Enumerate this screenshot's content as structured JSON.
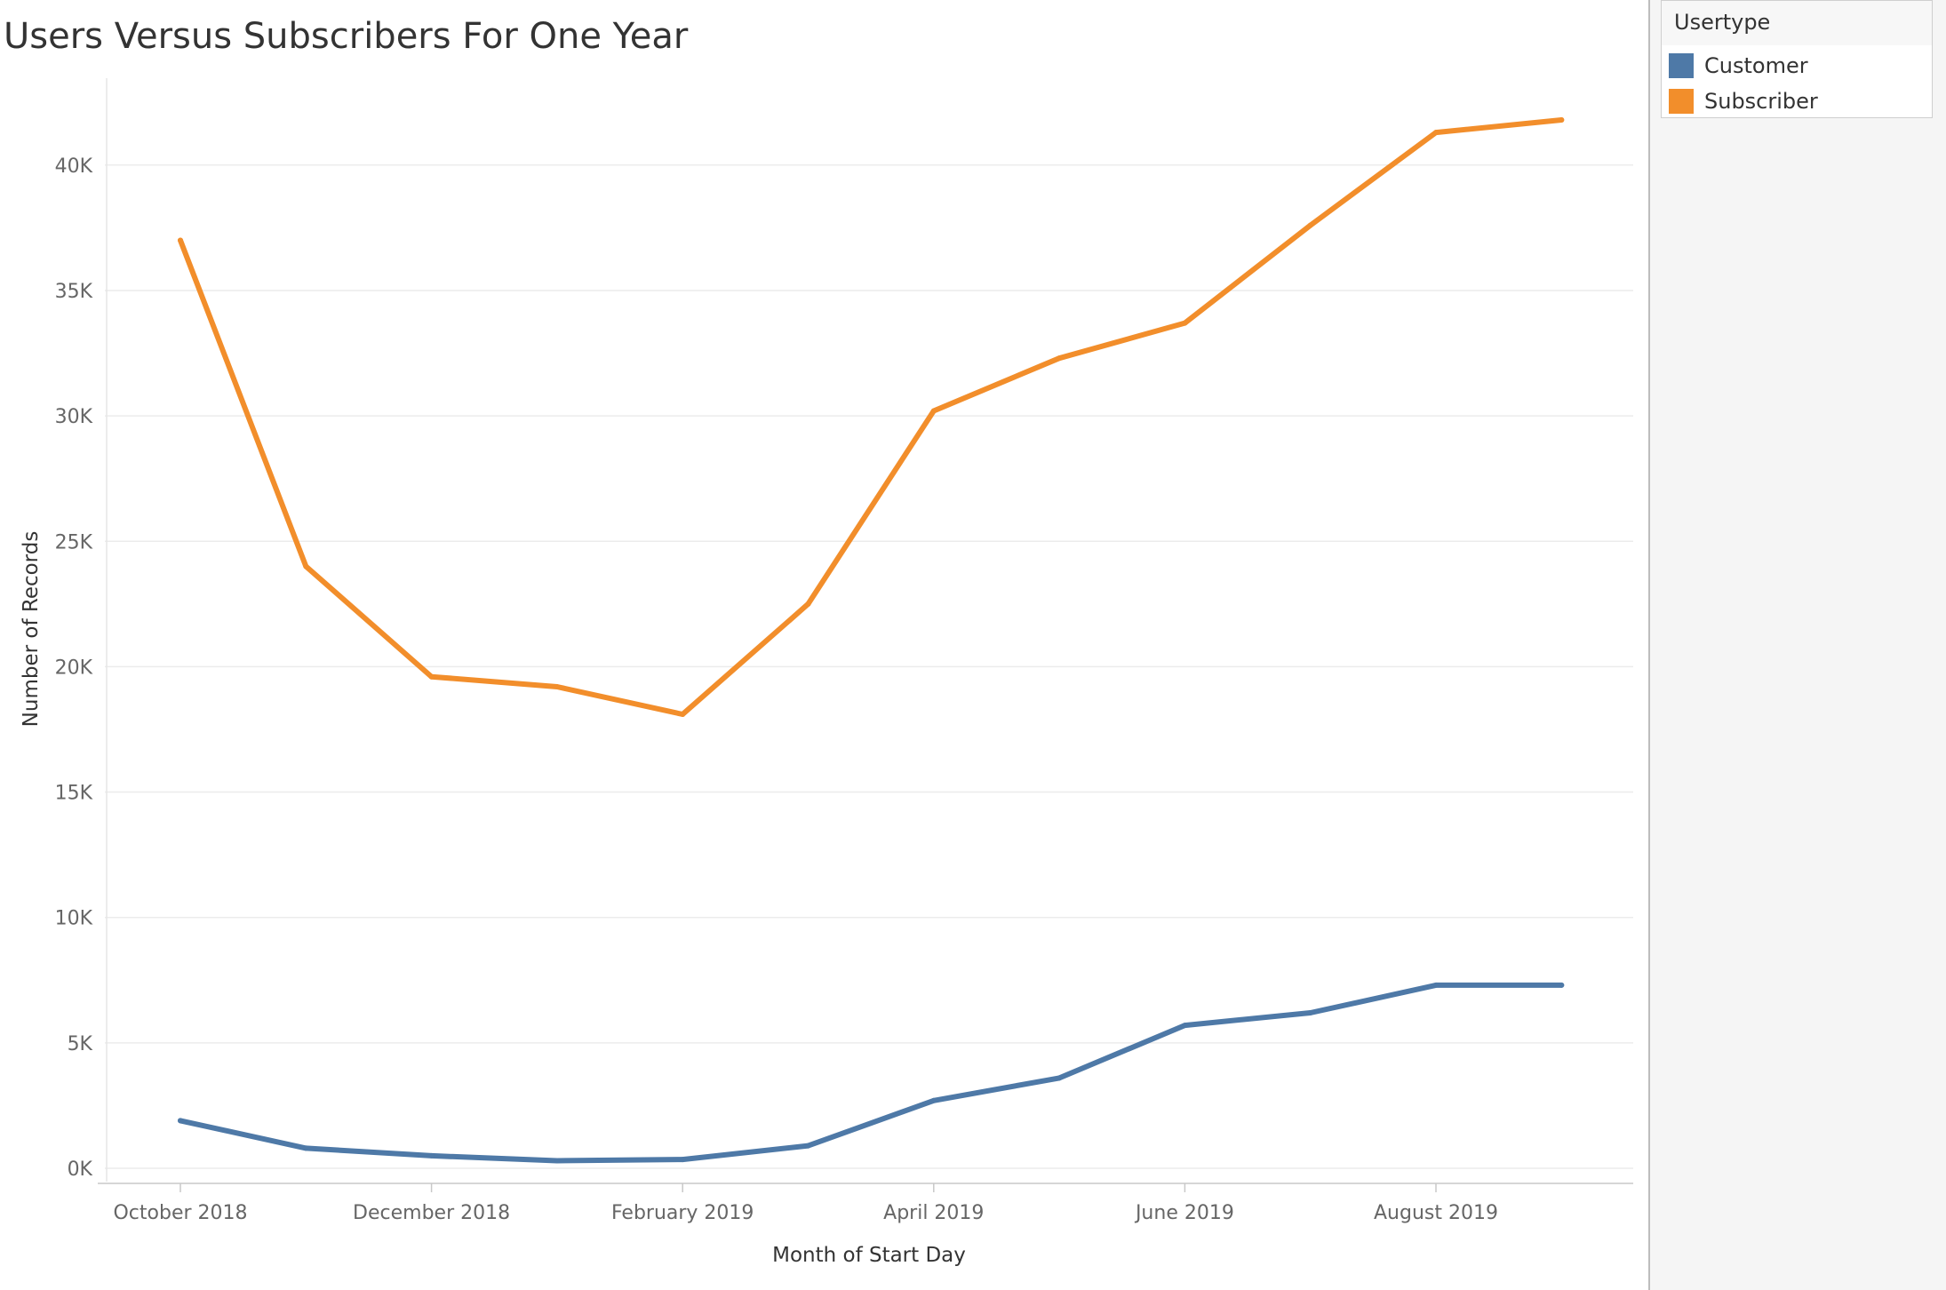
{
  "chart_data": {
    "type": "line",
    "title": "Users Versus Subscribers For One Year",
    "xlabel": "Month of Start Day",
    "ylabel": "Number of Records",
    "x": [
      "October 2018",
      "November 2018",
      "December 2018",
      "January 2019",
      "February 2019",
      "March 2019",
      "April 2019",
      "May 2019",
      "June 2019",
      "July 2019",
      "August 2019",
      "September 2019"
    ],
    "x_tick_labels": [
      "October 2018",
      "December 2018",
      "February 2019",
      "April 2019",
      "June 2019",
      "August 2019"
    ],
    "y_tick_labels": [
      "0K",
      "5K",
      "10K",
      "15K",
      "20K",
      "25K",
      "30K",
      "35K",
      "40K"
    ],
    "y_ticks": [
      0,
      5000,
      10000,
      15000,
      20000,
      25000,
      30000,
      35000,
      40000
    ],
    "ylim": [
      -600,
      44000
    ],
    "grid": true,
    "legend_title": "Usertype",
    "legend_position": "top-right",
    "series": [
      {
        "name": "Customer",
        "color": "#4e79a7",
        "values": [
          1900,
          800,
          500,
          300,
          350,
          900,
          2700,
          3600,
          5700,
          6200,
          7300,
          7300
        ]
      },
      {
        "name": "Subscriber",
        "color": "#f28e2b",
        "values": [
          37000,
          24000,
          19600,
          19200,
          18100,
          22500,
          30200,
          32300,
          33700,
          37600,
          41300,
          41800
        ]
      }
    ]
  }
}
